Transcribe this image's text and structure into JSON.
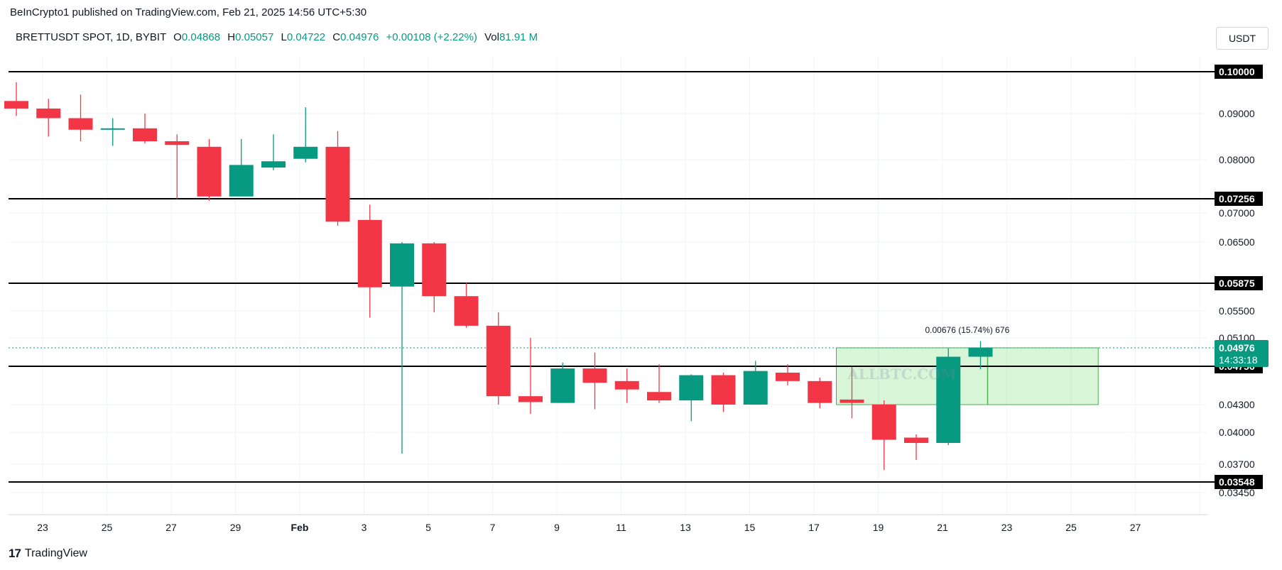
{
  "header": {
    "attribution": "BeInCrypto1 published on TradingView.com, Feb 21, 2025 14:56 UTC+5:30",
    "symbol": "BRETTUSDT SPOT, 1D, BYBIT",
    "open_label": "O",
    "open": "0.04868",
    "high_label": "H",
    "high": "0.05057",
    "low_label": "L",
    "low": "0.04722",
    "close_label": "C",
    "close": "0.04976",
    "change": "+0.00108 (+2.22%)",
    "vol_label": "Vol",
    "vol": "81.91 M"
  },
  "currency_button": "USDT",
  "footer": {
    "logo_mark": "17",
    "brand": "TradingView"
  },
  "watermark": "ALLBTC.COM",
  "chart_data": {
    "type": "candlestick",
    "x_tick_labels": [
      "23",
      "25",
      "27",
      "29",
      "Feb",
      "3",
      "5",
      "7",
      "9",
      "11",
      "13",
      "15",
      "17",
      "19",
      "21",
      "23",
      "25",
      "27"
    ],
    "y_tick_labels": [
      "0.09000",
      "0.08000",
      "0.07000",
      "0.06500",
      "0.05500",
      "0.05100",
      "0.04300",
      "0.04000",
      "0.03700",
      "0.03450"
    ],
    "y_tick_values": [
      0.09,
      0.08,
      0.07,
      0.065,
      0.055,
      0.051,
      0.043,
      0.04,
      0.037,
      0.0345
    ],
    "horizontal_levels": [
      "0.10000",
      "0.07256",
      "0.05875",
      "0.04756",
      "0.03548"
    ],
    "horizontal_level_values": [
      0.1,
      0.07256,
      0.05875,
      0.04756,
      0.03548
    ],
    "last_price_label": "0.04976",
    "last_price_value": 0.04976,
    "countdown": "14:33:18",
    "measure_label": "0.00676 (15.74%) 676",
    "measure_range": {
      "from_index": 26,
      "to_index": 33,
      "low": 0.043,
      "high": 0.04976
    },
    "up_color": "#089981",
    "down_color": "#f23645",
    "level_color": "#000000",
    "candles": [
      {
        "o": 0.093,
        "h": 0.0975,
        "l": 0.0895,
        "c": 0.0912
      },
      {
        "o": 0.0912,
        "h": 0.0935,
        "l": 0.085,
        "c": 0.089
      },
      {
        "o": 0.089,
        "h": 0.0945,
        "l": 0.084,
        "c": 0.0865
      },
      {
        "o": 0.0865,
        "h": 0.089,
        "l": 0.083,
        "c": 0.0868
      },
      {
        "o": 0.0868,
        "h": 0.09,
        "l": 0.0835,
        "c": 0.084
      },
      {
        "o": 0.084,
        "h": 0.0855,
        "l": 0.0725,
        "c": 0.0832
      },
      {
        "o": 0.0828,
        "h": 0.0845,
        "l": 0.0722,
        "c": 0.073
      },
      {
        "o": 0.073,
        "h": 0.0845,
        "l": 0.073,
        "c": 0.079
      },
      {
        "o": 0.0785,
        "h": 0.0855,
        "l": 0.078,
        "c": 0.0797
      },
      {
        "o": 0.0802,
        "h": 0.0915,
        "l": 0.0795,
        "c": 0.0828
      },
      {
        "o": 0.0828,
        "h": 0.0862,
        "l": 0.0678,
        "c": 0.0685
      },
      {
        "o": 0.0688,
        "h": 0.0715,
        "l": 0.054,
        "c": 0.0582
      },
      {
        "o": 0.0583,
        "h": 0.065,
        "l": 0.038,
        "c": 0.0648
      },
      {
        "o": 0.0648,
        "h": 0.065,
        "l": 0.0548,
        "c": 0.057
      },
      {
        "o": 0.057,
        "h": 0.0588,
        "l": 0.0525,
        "c": 0.0528
      },
      {
        "o": 0.0528,
        "h": 0.0548,
        "l": 0.043,
        "c": 0.044
      },
      {
        "o": 0.044,
        "h": 0.051,
        "l": 0.042,
        "c": 0.0433
      },
      {
        "o": 0.0432,
        "h": 0.048,
        "l": 0.0432,
        "c": 0.0473
      },
      {
        "o": 0.0473,
        "h": 0.0492,
        "l": 0.0425,
        "c": 0.0456
      },
      {
        "o": 0.0458,
        "h": 0.0473,
        "l": 0.0432,
        "c": 0.0448
      },
      {
        "o": 0.0445,
        "h": 0.0478,
        "l": 0.0432,
        "c": 0.0435
      },
      {
        "o": 0.0435,
        "h": 0.0466,
        "l": 0.0412,
        "c": 0.0465
      },
      {
        "o": 0.0465,
        "h": 0.0468,
        "l": 0.0422,
        "c": 0.043
      },
      {
        "o": 0.043,
        "h": 0.0482,
        "l": 0.043,
        "c": 0.047
      },
      {
        "o": 0.0468,
        "h": 0.0478,
        "l": 0.0453,
        "c": 0.0458
      },
      {
        "o": 0.0458,
        "h": 0.0462,
        "l": 0.0426,
        "c": 0.0432
      },
      {
        "o": 0.0436,
        "h": 0.0475,
        "l": 0.0415,
        "c": 0.0432
      },
      {
        "o": 0.043,
        "h": 0.0435,
        "l": 0.0365,
        "c": 0.0393
      },
      {
        "o": 0.0395,
        "h": 0.0398,
        "l": 0.0374,
        "c": 0.039
      },
      {
        "o": 0.039,
        "h": 0.0497,
        "l": 0.0388,
        "c": 0.0487
      },
      {
        "o": 0.0487,
        "h": 0.0506,
        "l": 0.0472,
        "c": 0.0498
      }
    ],
    "candle_dates_note_removed": true
  }
}
